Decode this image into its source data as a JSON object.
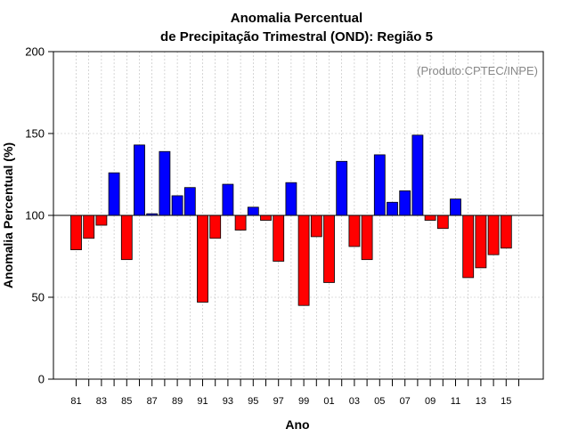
{
  "chart_data": {
    "type": "bar",
    "title_line1": "Anomalia Percentual",
    "title_line2": "de Precipitação Trimestral (OND): Região 5",
    "xlabel": "Ano",
    "ylabel": "Anomalia Percentual (%)",
    "credit": "(Produto:CPTEC/INPE)",
    "ylim": [
      0,
      200
    ],
    "yticks": [
      "0",
      "50",
      "100",
      "150",
      "200"
    ],
    "baseline": 100,
    "grid": true,
    "colors": {
      "above": "#0000ff",
      "below": "#ff0000",
      "grid": "#bbbbbb"
    },
    "categories": [
      "81",
      "82",
      "83",
      "84",
      "85",
      "86",
      "87",
      "88",
      "89",
      "90",
      "91",
      "92",
      "93",
      "94",
      "95",
      "96",
      "97",
      "98",
      "99",
      "00",
      "01",
      "02",
      "03",
      "04",
      "05",
      "06",
      "07",
      "08",
      "09",
      "10",
      "11",
      "12",
      "13",
      "14",
      "15",
      "16"
    ],
    "xtick_labels": [
      "81",
      "83",
      "85",
      "87",
      "89",
      "91",
      "93",
      "95",
      "97",
      "99",
      "01",
      "03",
      "05",
      "07",
      "09",
      "11",
      "13",
      "15"
    ],
    "values": [
      79,
      86,
      94,
      126,
      73,
      143,
      101,
      139,
      112,
      117,
      47,
      86,
      119,
      91,
      105,
      97,
      72,
      120,
      45,
      87,
      59,
      133,
      81,
      73,
      137,
      108,
      115,
      149,
      97,
      92,
      110,
      62,
      68,
      76,
      80,
      null
    ]
  }
}
